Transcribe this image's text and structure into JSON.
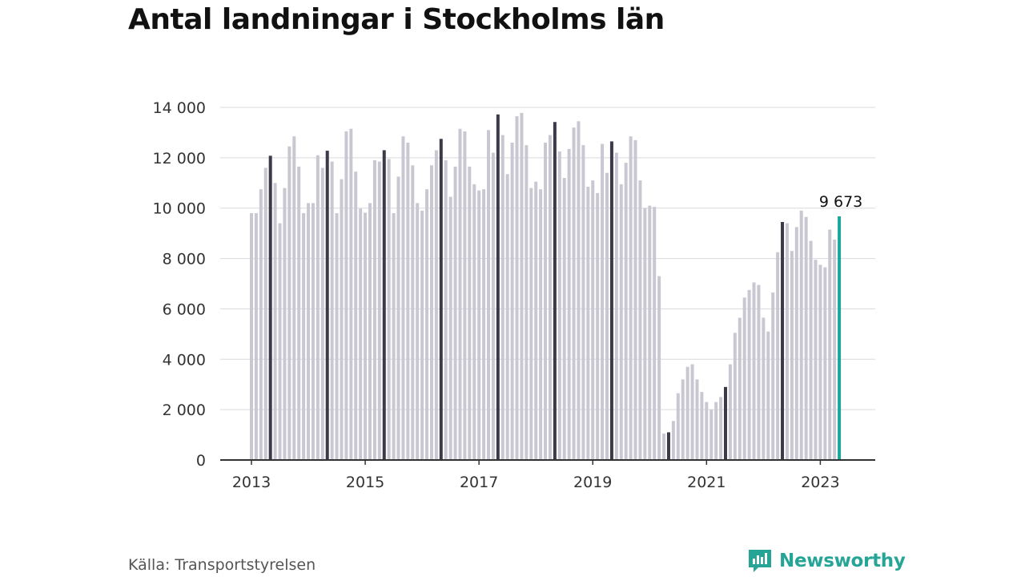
{
  "title": "Antal landningar i Stockholms län",
  "source": "Källa: Transportstyrelsen",
  "brand": {
    "name": "Newsworthy",
    "color": "#26a597",
    "icon": "newsworthy-logo-icon"
  },
  "chart_data": {
    "type": "bar",
    "title": "Antal landningar i Stockholms län",
    "xlabel": "",
    "ylabel": "",
    "ylim": [
      0,
      14000
    ],
    "yticks": [
      0,
      2000,
      4000,
      6000,
      8000,
      10000,
      12000,
      14000
    ],
    "ytick_labels": [
      "0",
      "2 000",
      "4 000",
      "6 000",
      "8 000",
      "10 000",
      "12 000",
      "14 000"
    ],
    "xticks": [
      "2013",
      "2015",
      "2017",
      "2019",
      "2021",
      "2023"
    ],
    "grid": "horizontal",
    "start": "2013-01",
    "frequency": "monthly",
    "colors": {
      "default": "#c9c8d2",
      "may": "#3b3a48",
      "latest": "#1aa69a"
    },
    "values": [
      9800,
      9800,
      10750,
      11600,
      12080,
      11000,
      9400,
      10800,
      12450,
      12850,
      11650,
      9800,
      10200,
      10200,
      12100,
      11600,
      12280,
      11850,
      9800,
      11150,
      13050,
      13150,
      11450,
      9980,
      9820,
      10200,
      11900,
      11850,
      12300,
      11950,
      9800,
      11250,
      12850,
      12600,
      11700,
      10200,
      9900,
      10750,
      11700,
      12300,
      12750,
      11900,
      10450,
      11650,
      13150,
      13050,
      11650,
      10950,
      10700,
      10750,
      13100,
      12200,
      13720,
      12900,
      11350,
      12600,
      13650,
      13780,
      12500,
      10800,
      11050,
      10750,
      12600,
      12900,
      13420,
      12250,
      11200,
      12350,
      13200,
      13450,
      12500,
      10850,
      11100,
      10600,
      12550,
      11400,
      12650,
      12200,
      10950,
      11800,
      12850,
      12700,
      11100,
      10000,
      10100,
      10050,
      7300,
      1050,
      1100,
      1550,
      2650,
      3200,
      3700,
      3800,
      3200,
      2700,
      2300,
      2000,
      2300,
      2500,
      2900,
      3800,
      5050,
      5650,
      6450,
      6750,
      7050,
      6950,
      5650,
      5100,
      6650,
      8250,
      9450,
      9400,
      8300,
      9250,
      9900,
      9650,
      8700,
      7950,
      7750,
      7650,
      9150,
      8750,
      9673
    ],
    "highlight_month": 5,
    "annotation": {
      "label": "9 673",
      "value": 9673,
      "date": "2023-05"
    }
  }
}
